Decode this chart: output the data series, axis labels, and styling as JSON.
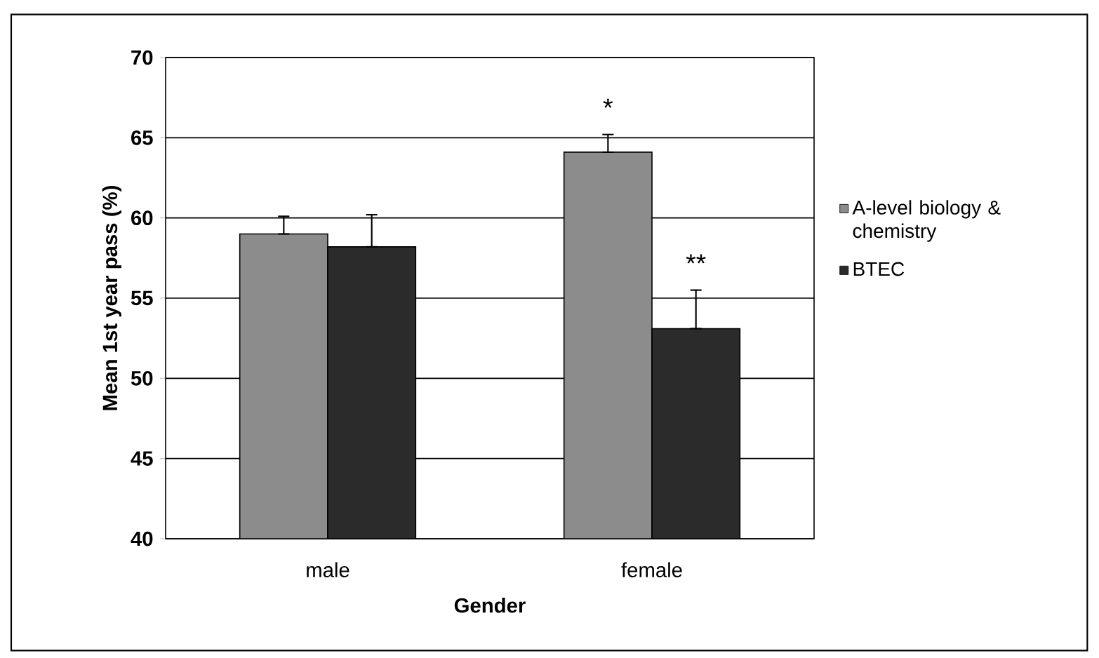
{
  "chart_data": {
    "type": "bar",
    "xlabel": "Gender",
    "ylabel": "Mean 1st year pass (%)",
    "categories": [
      "male",
      "female"
    ],
    "series": [
      {
        "name": "A-level biology & chemistry",
        "color": "#8c8c8c",
        "values": [
          59.0,
          64.1
        ],
        "errors": [
          [
            59.0,
            60.1
          ],
          [
            64.1,
            65.2
          ]
        ]
      },
      {
        "name": "BTEC",
        "color": "#2b2b2b",
        "values": [
          58.2,
          53.1
        ],
        "errors": [
          [
            58.2,
            60.2
          ],
          [
            53.1,
            55.5
          ]
        ]
      }
    ],
    "annotations": [
      "*",
      "**"
    ],
    "ylim": [
      40,
      70
    ],
    "yticks": [
      40,
      45,
      50,
      55,
      60,
      65,
      70
    ],
    "grid": "y",
    "legend": "right"
  }
}
